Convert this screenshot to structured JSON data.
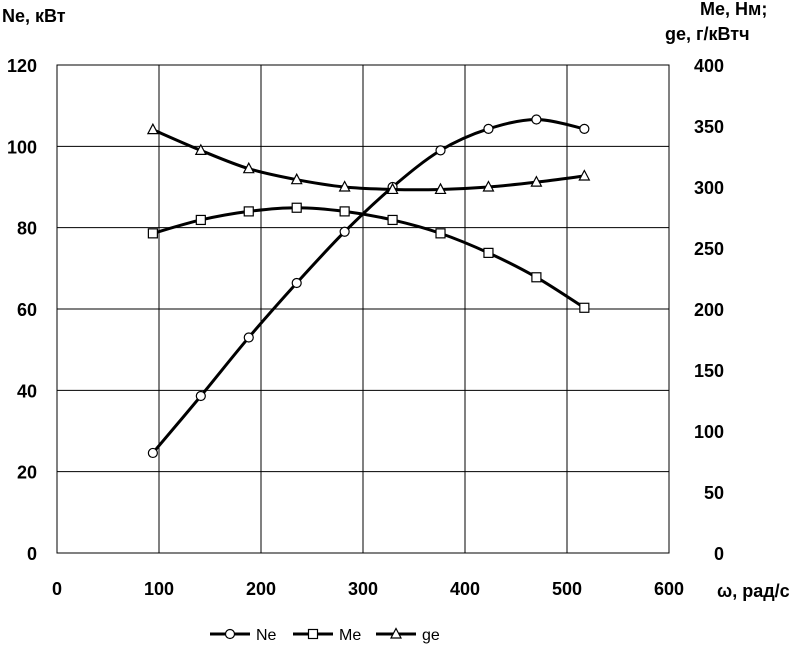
{
  "chart_data": {
    "type": "line",
    "y_left_label": "Ne, кВт",
    "y_right_label_line1": "Me, Нм;",
    "y_right_label_line2": "ge,  г/кВтч",
    "x_label": "ω, рад/с",
    "xlim": [
      0,
      600
    ],
    "ylim_left": [
      0,
      120
    ],
    "ylim_right": [
      0,
      400
    ],
    "x_ticks": [
      "0",
      "100",
      "200",
      "300",
      "400",
      "500",
      "600"
    ],
    "y_left_ticks": [
      "0",
      "20",
      "40",
      "60",
      "80",
      "100",
      "120"
    ],
    "y_right_ticks": [
      "0",
      "50",
      "100",
      "150",
      "200",
      "250",
      "300",
      "350",
      "400"
    ],
    "grid": true,
    "legend_position": "bottom",
    "series": [
      {
        "name": "Ne",
        "axis": "left",
        "marker": "circle",
        "x": [
          94,
          141,
          188,
          235,
          282,
          329,
          376,
          423,
          470,
          517
        ],
        "y": [
          24.6,
          38.6,
          53.0,
          66.4,
          79.0,
          90.0,
          99.0,
          104.3,
          106.6,
          104.3
        ]
      },
      {
        "name": "Me",
        "axis": "right",
        "marker": "square",
        "x": [
          94,
          141,
          188,
          235,
          282,
          329,
          376,
          423,
          470,
          517
        ],
        "y": [
          262,
          273,
          280,
          283,
          280,
          273,
          262,
          246,
          226,
          201
        ]
      },
      {
        "name": "ge",
        "axis": "right",
        "marker": "triangle",
        "x": [
          94,
          141,
          188,
          235,
          282,
          329,
          376,
          423,
          470,
          517
        ],
        "y": [
          347,
          330,
          315,
          306,
          300,
          298,
          298,
          300,
          304,
          309
        ]
      }
    ]
  }
}
